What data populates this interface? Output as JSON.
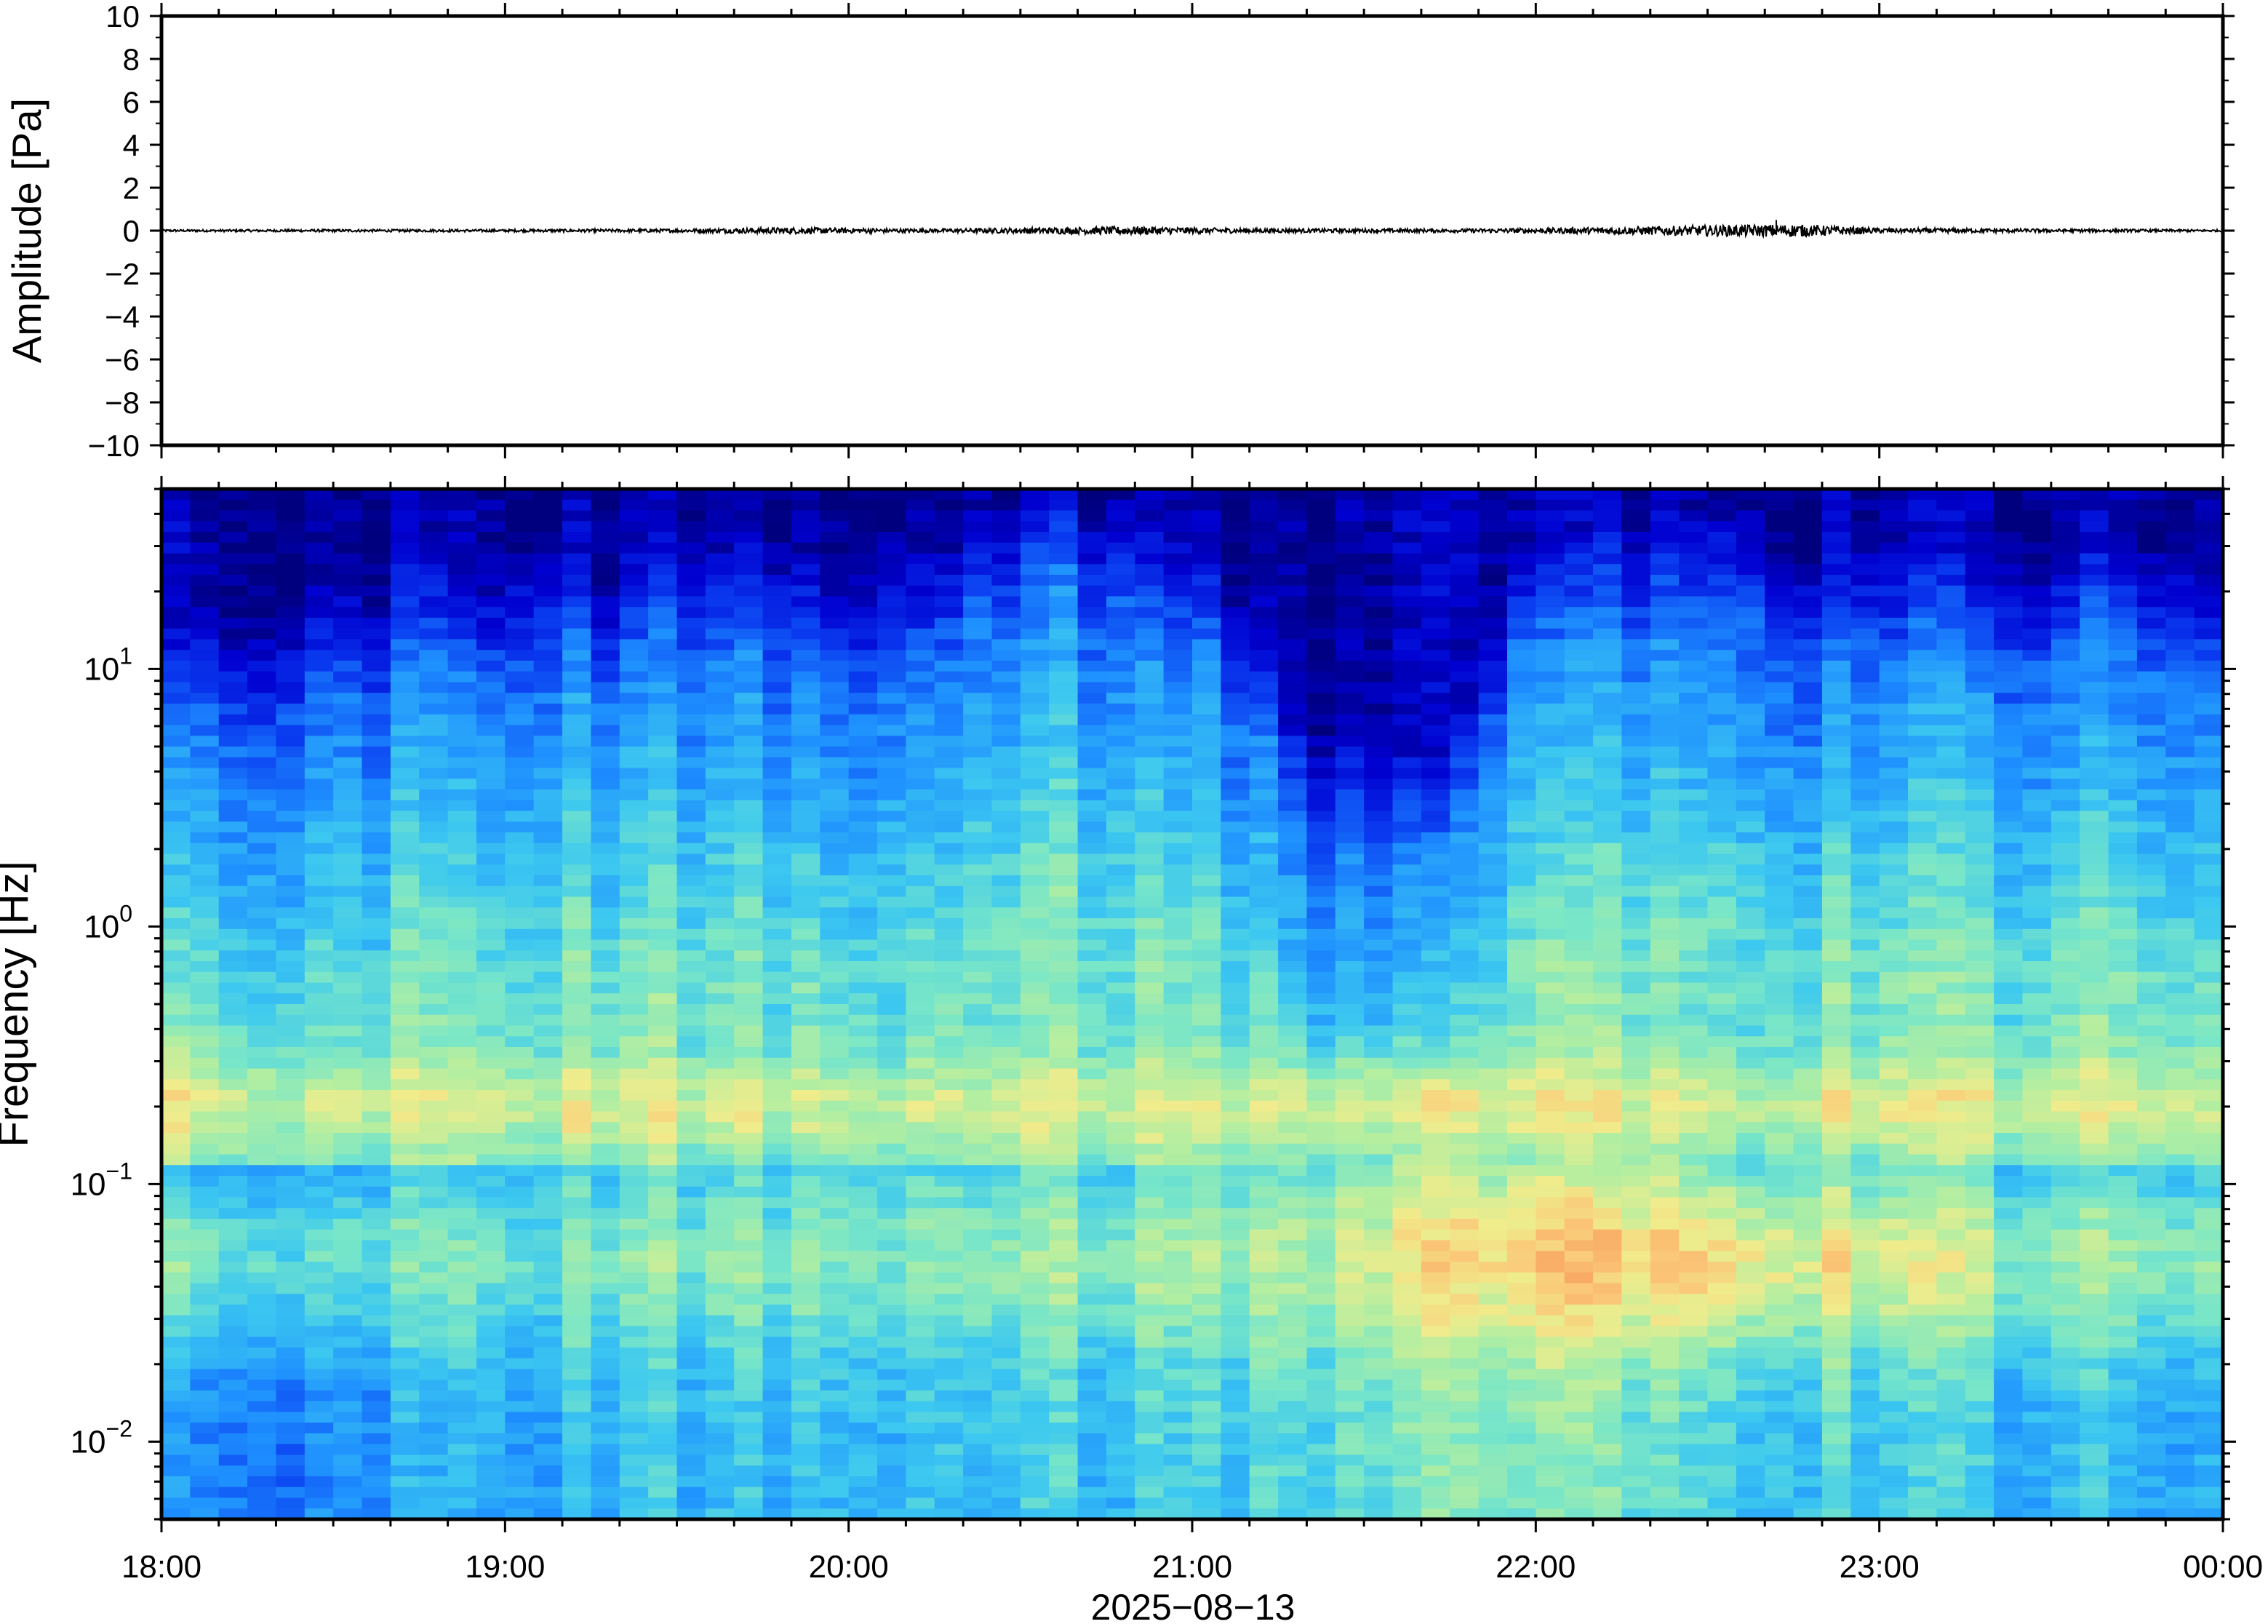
{
  "chart_data": [
    {
      "type": "line",
      "ylabel": "Amplitude [Pa]",
      "ylim": [
        -10,
        10
      ],
      "yticks": [
        "10",
        "8",
        "6",
        "4",
        "2",
        "0",
        "−2",
        "−4",
        "−6",
        "−8",
        "−10"
      ],
      "ytick_values": [
        10,
        8,
        6,
        4,
        2,
        0,
        -2,
        -4,
        -6,
        -8,
        -10
      ],
      "x_range": [
        "18:00",
        "00:00"
      ],
      "series": [
        {
          "values_hint": "near-zero pressure trace",
          "envelope": [
            {
              "t": "18:00",
              "a": 0.05
            },
            {
              "t": "18:30",
              "a": 0.06
            },
            {
              "t": "19:00",
              "a": 0.06
            },
            {
              "t": "19:30",
              "a": 0.08
            },
            {
              "t": "19:50",
              "a": 0.15
            },
            {
              "t": "20:15",
              "a": 0.08
            },
            {
              "t": "20:50",
              "a": 0.2
            },
            {
              "t": "21:10",
              "a": 0.1
            },
            {
              "t": "21:45",
              "a": 0.08
            },
            {
              "t": "22:10",
              "a": 0.15
            },
            {
              "t": "22:30",
              "a": 0.25
            },
            {
              "t": "22:45",
              "a": 0.3
            },
            {
              "t": "23:00",
              "a": 0.12
            },
            {
              "t": "23:30",
              "a": 0.08
            },
            {
              "t": "00:00",
              "a": 0.05
            }
          ],
          "spike": {
            "t": "22:42",
            "a": 0.5
          }
        }
      ],
      "color": "#000000"
    },
    {
      "type": "heatmap",
      "ylabel": "Frequency [Hz]",
      "yscale": "log",
      "ylim": [
        0.005,
        50
      ],
      "yticks": [
        {
          "base": "10",
          "exp": "1",
          "value": 10
        },
        {
          "base": "10",
          "exp": "0",
          "value": 1
        },
        {
          "base": "10",
          "exp": "−1",
          "value": 0.1
        },
        {
          "base": "10",
          "exp": "−2",
          "value": 0.01
        }
      ],
      "xlabel": "2025−08−13",
      "xticks": [
        "18:00",
        "19:00",
        "20:00",
        "21:00",
        "22:00",
        "23:00",
        "00:00"
      ],
      "colormap": "jet",
      "power_profile": {
        "18:00": {
          "edge_hz": 5,
          "low_freq_level": 0.3,
          "peak_0.06hz": 0.55
        },
        "19:00": {
          "edge_hz": 10,
          "low_freq_level": 0.4,
          "peak_0.06hz": 0.55
        },
        "20:00": {
          "edge_hz": 10,
          "low_freq_level": 0.45,
          "peak_0.06hz": 0.6
        },
        "20:45": {
          "edge_hz": 18,
          "low_freq_level": 0.45,
          "peak_0.06hz": 0.6
        },
        "21:20": {
          "edge_hz": 2,
          "low_freq_level": 0.5,
          "peak_0.06hz": 0.65
        },
        "21:45": {
          "edge_hz": 1.5,
          "low_freq_level": 0.55,
          "peak_0.06hz": 0.75
        },
        "22:00": {
          "edge_hz": 10,
          "low_freq_level": 0.55,
          "peak_0.06hz": 0.78
        },
        "22:30": {
          "edge_hz": 15,
          "low_freq_level": 0.5,
          "peak_0.06hz": 0.8
        },
        "23:00": {
          "edge_hz": 10,
          "low_freq_level": 0.45,
          "peak_0.06hz": 0.7
        },
        "23:30": {
          "edge_hz": 10,
          "low_freq_level": 0.42,
          "peak_0.06hz": 0.6
        },
        "00:00": {
          "edge_hz": 8,
          "low_freq_level": 0.4,
          "peak_0.06hz": 0.6
        }
      },
      "band_0.15hz_level": 0.7
    }
  ]
}
